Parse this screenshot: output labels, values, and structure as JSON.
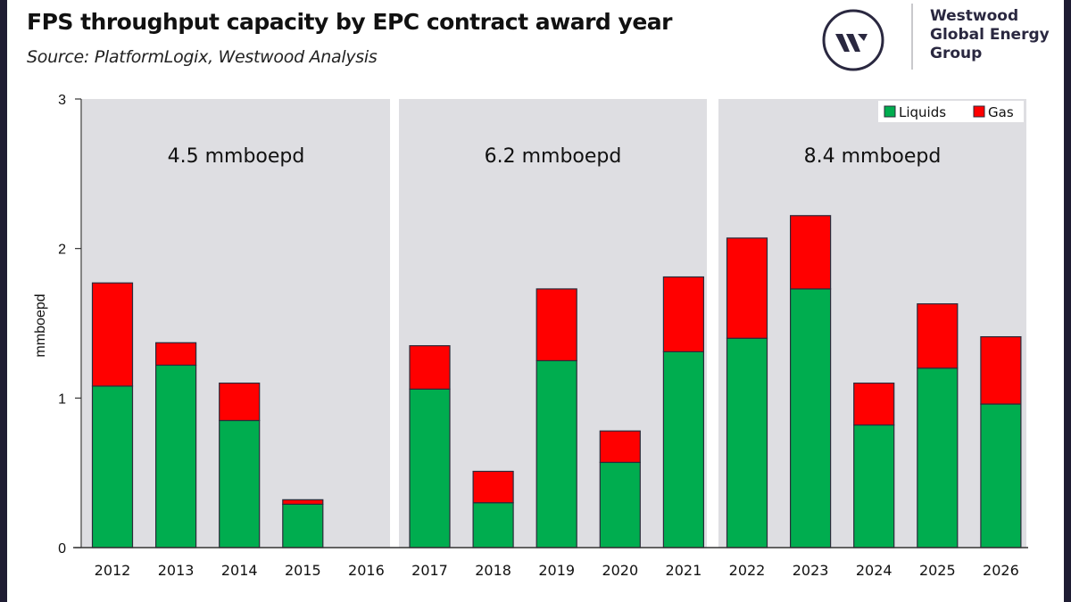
{
  "header": {
    "title": "FPS throughput capacity by EPC contract award year",
    "subtitle": "Source: PlatformLogix, Westwood Analysis"
  },
  "brand": {
    "logo_icon": "westwood-w-circle-icon",
    "name_lines": [
      "Westwood",
      "Global Energy",
      "Group"
    ],
    "color": "#2a2840"
  },
  "colors": {
    "liquids": "#00ad4f",
    "gas": "#ff0000",
    "panel_bg": "#dedee2",
    "frame": "#1f1d33"
  },
  "chart_data": {
    "type": "bar",
    "stacked": true,
    "title": "FPS throughput capacity by EPC contract award year",
    "xlabel": "",
    "ylabel": "mmboepd",
    "ylim": [
      0,
      3
    ],
    "yticks": [
      0,
      1,
      2,
      3
    ],
    "grid": false,
    "legend_position": "top-right",
    "categories": [
      "2012",
      "2013",
      "2014",
      "2015",
      "2016",
      "2017",
      "2018",
      "2019",
      "2020",
      "2021",
      "2022",
      "2023",
      "2024",
      "2025",
      "2026"
    ],
    "series": [
      {
        "name": "Liquids",
        "color": "#00ad4f",
        "values": [
          1.08,
          1.22,
          0.85,
          0.29,
          0,
          1.06,
          0.3,
          1.25,
          0.57,
          1.31,
          1.4,
          1.73,
          0.82,
          1.2,
          0.96
        ]
      },
      {
        "name": "Gas",
        "color": "#ff0000",
        "values": [
          0.69,
          0.15,
          0.25,
          0.03,
          0,
          0.29,
          0.21,
          0.48,
          0.21,
          0.5,
          0.67,
          0.49,
          0.28,
          0.43,
          0.45
        ]
      }
    ],
    "periods": [
      {
        "label": "4.5 mmboepd",
        "from": "2012",
        "to": "2016"
      },
      {
        "label": "6.2 mmboepd",
        "from": "2017",
        "to": "2021"
      },
      {
        "label": "8.4 mmboepd",
        "from": "2022",
        "to": "2026"
      }
    ]
  }
}
